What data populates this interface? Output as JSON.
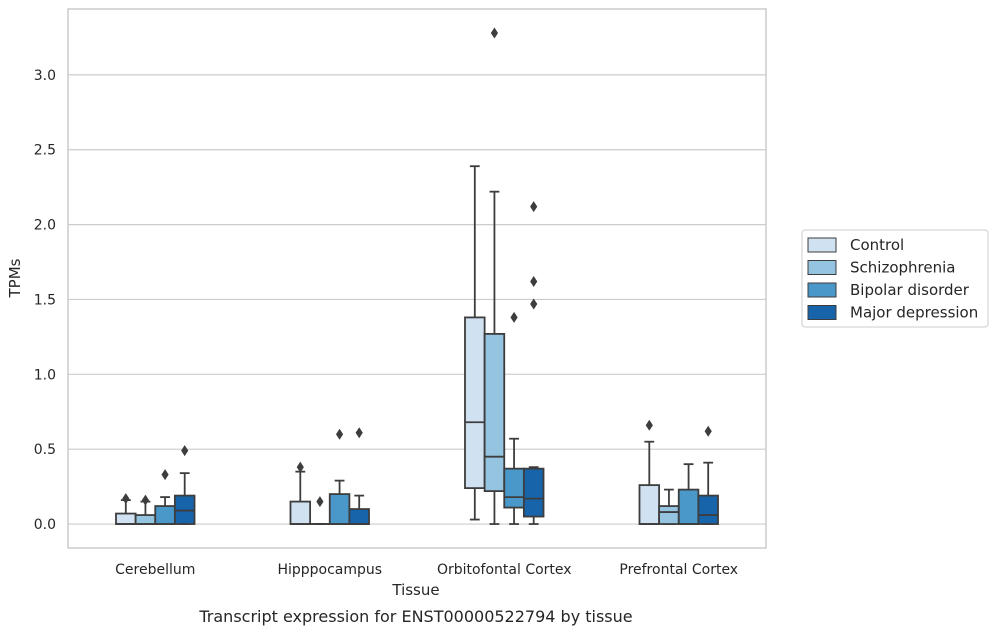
{
  "chart_data": {
    "type": "box",
    "xlabel": "Tissue",
    "ylabel": "TPMs",
    "caption": "Transcript expression for ENST00000522794 by tissue",
    "ylim": [
      -0.16,
      3.44
    ],
    "yticks": [
      0.0,
      0.5,
      1.0,
      1.5,
      2.0,
      2.5,
      3.0
    ],
    "ytick_labels": [
      "0.0",
      "0.5",
      "1.0",
      "1.5",
      "2.0",
      "2.5",
      "3.0"
    ],
    "grid": "horizontal",
    "legend_position": "right",
    "categories": [
      "Cerebellum",
      "Hipppocampus",
      "Orbitofontal Cortex",
      "Prefrontal Cortex"
    ],
    "series": [
      {
        "name": "Control",
        "color": "#d0e1f2",
        "boxes": [
          {
            "whislo": 0.0,
            "q1": 0.0,
            "med": 0.0,
            "q3": 0.07,
            "whishi": 0.16,
            "fliers": [
              0.17
            ]
          },
          {
            "whislo": 0.0,
            "q1": 0.0,
            "med": 0.0,
            "q3": 0.15,
            "whishi": 0.35,
            "fliers": [
              0.38
            ]
          },
          {
            "whislo": 0.03,
            "q1": 0.24,
            "med": 0.68,
            "q3": 1.38,
            "whishi": 2.39,
            "fliers": []
          },
          {
            "whislo": 0.0,
            "q1": 0.0,
            "med": 0.0,
            "q3": 0.26,
            "whishi": 0.55,
            "fliers": [
              0.66
            ]
          }
        ]
      },
      {
        "name": "Schizophrenia",
        "color": "#94c4df",
        "boxes": [
          {
            "whislo": 0.0,
            "q1": 0.0,
            "med": 0.0,
            "q3": 0.06,
            "whishi": 0.15,
            "fliers": [
              0.16
            ]
          },
          {
            "whislo": 0.0,
            "q1": 0.0,
            "med": 0.0,
            "q3": 0.0,
            "whishi": 0.0,
            "fliers": [
              0.15
            ]
          },
          {
            "whislo": 0.0,
            "q1": 0.22,
            "med": 0.45,
            "q3": 1.27,
            "whishi": 2.22,
            "fliers": [
              3.28
            ]
          },
          {
            "whislo": 0.0,
            "q1": 0.0,
            "med": 0.08,
            "q3": 0.12,
            "whishi": 0.23,
            "fliers": []
          }
        ]
      },
      {
        "name": "Bipolar disorder",
        "color": "#4a98c9",
        "boxes": [
          {
            "whislo": 0.0,
            "q1": 0.0,
            "med": 0.0,
            "q3": 0.12,
            "whishi": 0.18,
            "fliers": [
              0.33
            ]
          },
          {
            "whislo": 0.0,
            "q1": 0.0,
            "med": 0.0,
            "q3": 0.2,
            "whishi": 0.29,
            "fliers": [
              0.6
            ]
          },
          {
            "whislo": 0.0,
            "q1": 0.11,
            "med": 0.18,
            "q3": 0.37,
            "whishi": 0.57,
            "fliers": [
              1.38
            ]
          },
          {
            "whislo": 0.0,
            "q1": 0.0,
            "med": 0.0,
            "q3": 0.23,
            "whishi": 0.4,
            "fliers": []
          }
        ]
      },
      {
        "name": "Major depression",
        "color": "#1764ab",
        "boxes": [
          {
            "whislo": 0.0,
            "q1": 0.0,
            "med": 0.09,
            "q3": 0.19,
            "whishi": 0.34,
            "fliers": [
              0.49
            ]
          },
          {
            "whislo": 0.0,
            "q1": 0.0,
            "med": 0.0,
            "q3": 0.1,
            "whishi": 0.19,
            "fliers": [
              0.61
            ]
          },
          {
            "whislo": 0.0,
            "q1": 0.05,
            "med": 0.17,
            "q3": 0.37,
            "whishi": 0.38,
            "fliers": [
              1.47,
              1.62,
              2.12
            ]
          },
          {
            "whislo": 0.0,
            "q1": 0.0,
            "med": 0.06,
            "q3": 0.19,
            "whishi": 0.41,
            "fliers": [
              0.62
            ]
          }
        ]
      }
    ]
  }
}
